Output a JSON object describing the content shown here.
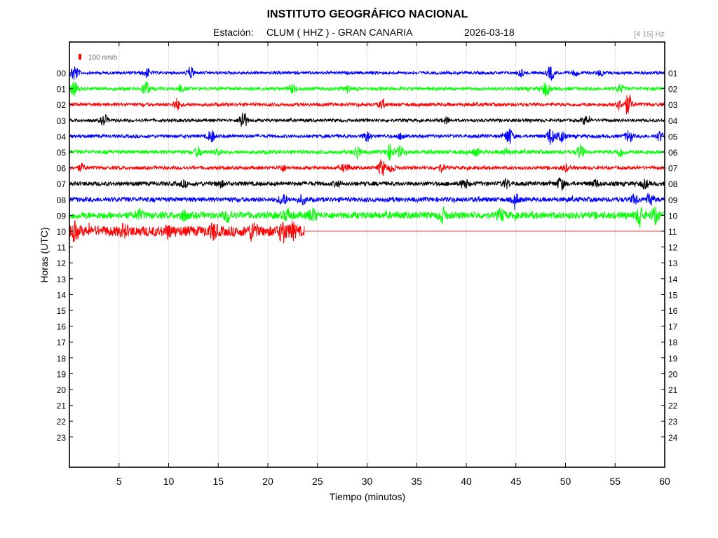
{
  "header": {
    "title": "INSTITUTO GEOGRÁFICO NACIONAL",
    "station_label": "Estación:",
    "station_value": "CLUM ( HHZ ) - GRAN CANARIA",
    "date": "2026-03-18",
    "filter": "[4 15] Hz"
  },
  "scale": {
    "label": "100 nm/s",
    "color": "#ff0000"
  },
  "chart_data": {
    "type": "line",
    "title": "INSTITUTO GEOGRÁFICO NACIONAL",
    "xlabel": "Tiempo (minutos)",
    "ylabel": "Horas (UTC)",
    "xlim": [
      0,
      60
    ],
    "x_ticks": [
      5,
      10,
      15,
      20,
      25,
      30,
      35,
      40,
      45,
      50,
      55,
      60
    ],
    "left_labels": [
      "00",
      "01",
      "02",
      "03",
      "04",
      "05",
      "06",
      "07",
      "08",
      "09",
      "10",
      "11",
      "12",
      "13",
      "14",
      "15",
      "16",
      "17",
      "18",
      "19",
      "20",
      "21",
      "22",
      "23"
    ],
    "right_labels": [
      "01",
      "02",
      "03",
      "04",
      "05",
      "06",
      "07",
      "08",
      "09",
      "10",
      "11",
      "12",
      "13",
      "14",
      "15",
      "16",
      "17",
      "18",
      "19",
      "20",
      "21",
      "22",
      "23",
      "24"
    ],
    "grid": "vertical",
    "series": [
      {
        "hour": "00",
        "color": "#0000ff",
        "start_min": 0,
        "end_min": 60,
        "level": 0.35,
        "events": [
          [
            0.5,
            2.0
          ],
          [
            7.8,
            1.0
          ],
          [
            12.2,
            1.3
          ],
          [
            45.5,
            0.8
          ],
          [
            48.5,
            1.6
          ],
          [
            51,
            0.6
          ],
          [
            53.5,
            0.6
          ]
        ]
      },
      {
        "hour": "01",
        "color": "#00ff00",
        "start_min": 0,
        "end_min": 60,
        "level": 0.4,
        "events": [
          [
            0.5,
            1.5
          ],
          [
            7.7,
            1.7
          ],
          [
            11.2,
            0.7
          ],
          [
            22.5,
            1.0
          ],
          [
            28,
            0.7
          ],
          [
            48,
            1.6
          ],
          [
            55.5,
            0.8
          ]
        ]
      },
      {
        "hour": "02",
        "color": "#ff0000",
        "start_min": 0,
        "end_min": 60,
        "level": 0.4,
        "events": [
          [
            10.8,
            1.3
          ],
          [
            31.5,
            0.8
          ],
          [
            55.3,
            1.1
          ],
          [
            56.3,
            2.4
          ]
        ]
      },
      {
        "hour": "03",
        "color": "#000000",
        "start_min": 0,
        "end_min": 60,
        "level": 0.35,
        "events": [
          [
            3.5,
            1.3
          ],
          [
            17.5,
            2.5
          ],
          [
            38,
            0.7
          ],
          [
            52,
            0.9
          ]
        ]
      },
      {
        "hour": "04",
        "color": "#0000ff",
        "start_min": 0,
        "end_min": 60,
        "level": 0.4,
        "events": [
          [
            14.3,
            1.3
          ],
          [
            30,
            1.2
          ],
          [
            33.5,
            0.7
          ],
          [
            44.3,
            2.0
          ],
          [
            48.5,
            1.9
          ],
          [
            49.5,
            1.5
          ],
          [
            56.4,
            1.4
          ],
          [
            59.5,
            1.0
          ]
        ]
      },
      {
        "hour": "05",
        "color": "#00ff00",
        "start_min": 0,
        "end_min": 60,
        "level": 0.45,
        "events": [
          [
            13,
            1.0
          ],
          [
            15,
            0.8
          ],
          [
            29,
            1.4
          ],
          [
            32.3,
            1.6
          ],
          [
            33.3,
            1.1
          ],
          [
            41,
            0.8
          ],
          [
            44,
            0.7
          ],
          [
            51.5,
            1.5
          ],
          [
            55.5,
            1.1
          ]
        ]
      },
      {
        "hour": "06",
        "color": "#ff0000",
        "start_min": 0,
        "end_min": 60,
        "level": 0.4,
        "events": [
          [
            1.2,
            0.8
          ],
          [
            21.5,
            0.7
          ],
          [
            27.8,
            1.0
          ],
          [
            31.5,
            1.9
          ],
          [
            32.5,
            0.8
          ],
          [
            37.5,
            0.8
          ],
          [
            50,
            0.7
          ]
        ]
      },
      {
        "hour": "07",
        "color": "#000000",
        "start_min": 0,
        "end_min": 60,
        "level": 0.5,
        "events": [
          [
            11.5,
            0.6
          ],
          [
            15.2,
            0.7
          ],
          [
            27,
            0.6
          ],
          [
            39.8,
            1.1
          ],
          [
            44,
            1.0
          ],
          [
            49.5,
            1.4
          ],
          [
            53,
            0.8
          ],
          [
            58,
            0.9
          ]
        ]
      },
      {
        "hour": "08",
        "color": "#0000ff",
        "start_min": 0,
        "end_min": 60,
        "level": 0.55,
        "events": [
          [
            21.5,
            1.3
          ],
          [
            23.5,
            0.8
          ],
          [
            45,
            1.0
          ],
          [
            57,
            1.0
          ],
          [
            58.5,
            1.4
          ]
        ]
      },
      {
        "hour": "09",
        "color": "#00ff00",
        "start_min": 0,
        "end_min": 60,
        "level": 0.8,
        "events": [
          [
            7,
            1.0
          ],
          [
            11.5,
            1.0
          ],
          [
            16,
            1.3
          ],
          [
            22,
            1.2
          ],
          [
            24.5,
            1.4
          ],
          [
            37.6,
            1.5
          ],
          [
            43.5,
            1.2
          ],
          [
            57.5,
            2.0
          ],
          [
            59,
            1.6
          ]
        ]
      },
      {
        "hour": "10",
        "color": "#ff0000",
        "start_min": 0,
        "end_min": 23.7,
        "level": 1.2,
        "events": [
          [
            0.5,
            1.5
          ],
          [
            5.5,
            0.9
          ],
          [
            10,
            0.9
          ],
          [
            14.5,
            1.4
          ],
          [
            18.5,
            1.9
          ],
          [
            21.5,
            2.1
          ],
          [
            22.5,
            1.3
          ]
        ]
      }
    ]
  }
}
